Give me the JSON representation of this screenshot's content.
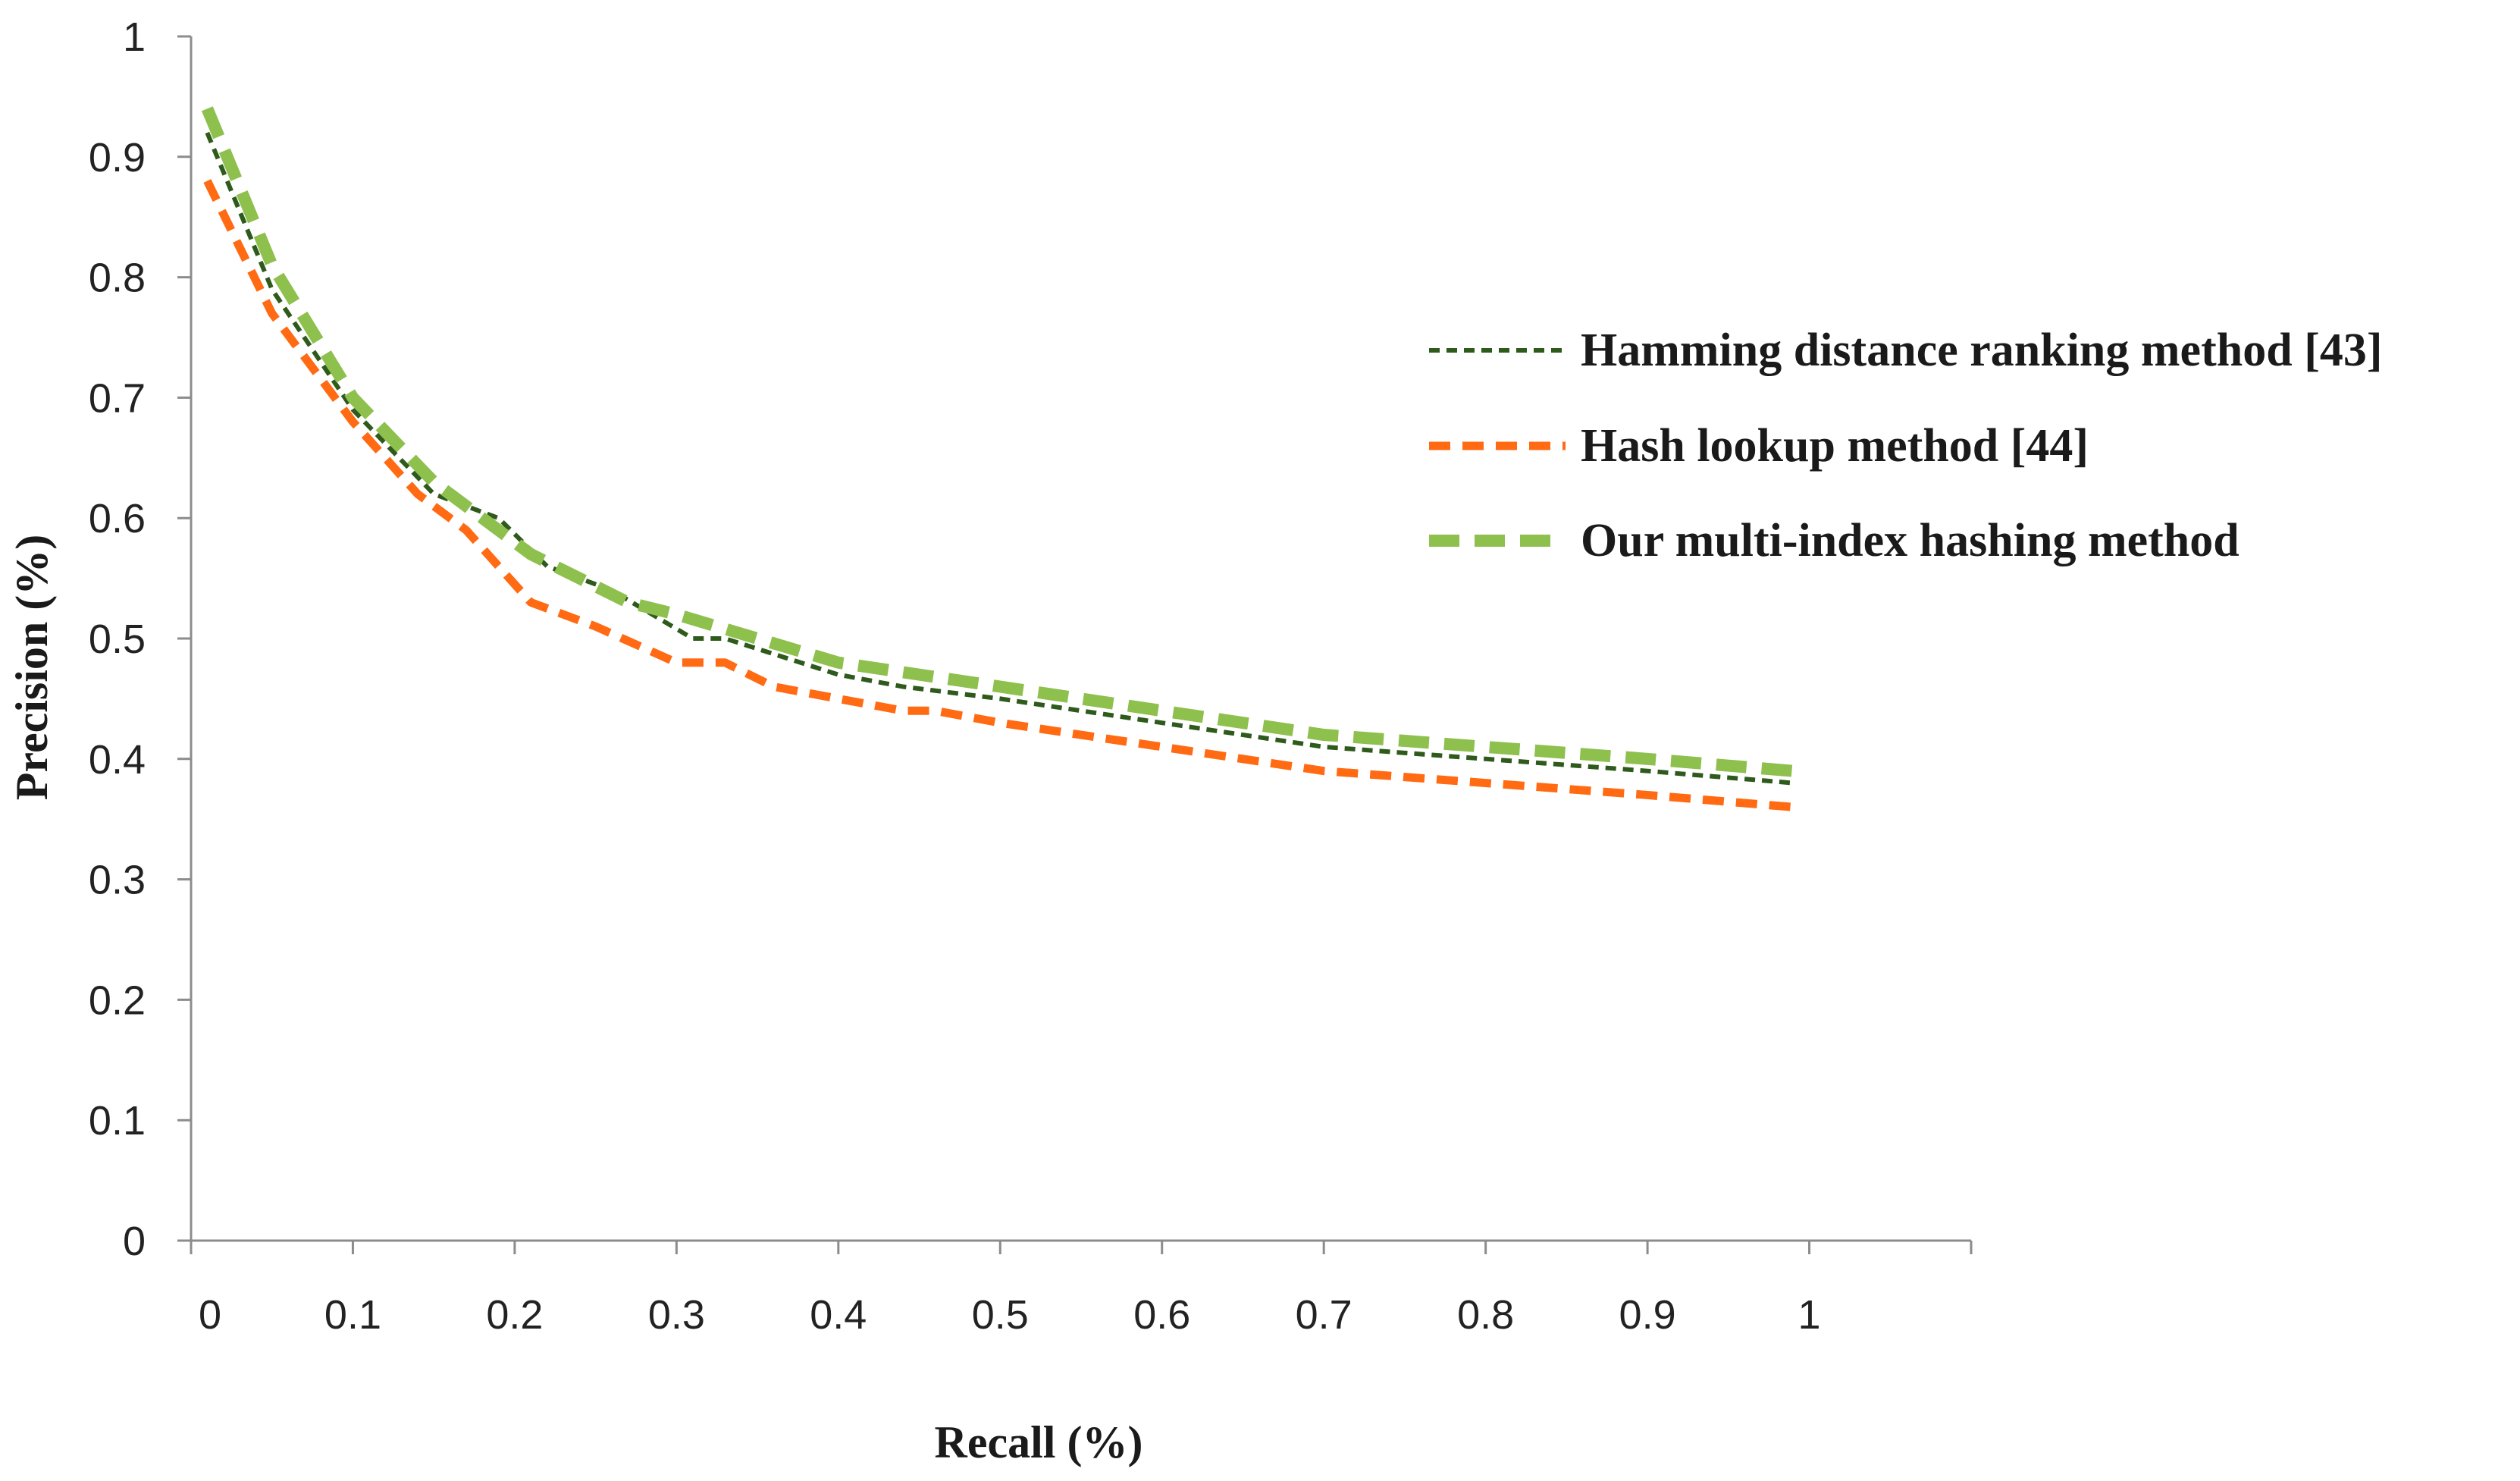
{
  "chart_data": {
    "type": "line",
    "title": "",
    "xlabel": "Recall (%)",
    "ylabel": "Precision (%)",
    "xlim": [
      0,
      1.1
    ],
    "ylim": [
      0,
      1
    ],
    "grid": false,
    "legend_position": "right",
    "x_tick_labels": [
      "0",
      "0.1",
      "0.2",
      "0.3",
      "0.4",
      "0.5",
      "0.6",
      "0.7",
      "0.8",
      "0.9",
      "1"
    ],
    "y_tick_labels": [
      "0",
      "0.1",
      "0.2",
      "0.3",
      "0.4",
      "0.5",
      "0.6",
      "0.7",
      "0.8",
      "0.9",
      "1"
    ],
    "series": [
      {
        "name": "Hamming distance ranking method [43]",
        "color": "#2e5a1c",
        "x": [
          0.01,
          0.05,
          0.1,
          0.15,
          0.19,
          0.22,
          0.26,
          0.31,
          0.33,
          0.4,
          0.44,
          0.5,
          0.6,
          0.7,
          0.8,
          0.9,
          0.99
        ],
        "values": [
          0.92,
          0.79,
          0.69,
          0.62,
          0.6,
          0.56,
          0.54,
          0.5,
          0.5,
          0.47,
          0.46,
          0.45,
          0.43,
          0.41,
          0.4,
          0.39,
          0.38
        ]
      },
      {
        "name": "Hash lookup method [44]",
        "color": "#ff6a13",
        "x": [
          0.01,
          0.05,
          0.1,
          0.14,
          0.17,
          0.21,
          0.25,
          0.3,
          0.33,
          0.36,
          0.44,
          0.46,
          0.5,
          0.6,
          0.7,
          0.8,
          0.9,
          0.99
        ],
        "values": [
          0.88,
          0.77,
          0.68,
          0.62,
          0.59,
          0.53,
          0.51,
          0.48,
          0.48,
          0.46,
          0.44,
          0.44,
          0.43,
          0.41,
          0.39,
          0.38,
          0.37,
          0.36
        ]
      },
      {
        "name": "Our multi-index hashing method",
        "color": "#8ec04e",
        "x": [
          0.01,
          0.05,
          0.1,
          0.15,
          0.21,
          0.27,
          0.3,
          0.35,
          0.4,
          0.45,
          0.5,
          0.6,
          0.7,
          0.8,
          0.9,
          0.99
        ],
        "values": [
          0.94,
          0.81,
          0.7,
          0.63,
          0.57,
          0.53,
          0.52,
          0.5,
          0.48,
          0.47,
          0.46,
          0.44,
          0.42,
          0.41,
          0.4,
          0.39
        ]
      }
    ]
  }
}
